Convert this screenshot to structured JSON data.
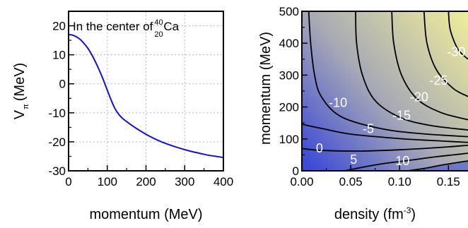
{
  "chart_data": [
    {
      "type": "line",
      "xlabel": "momentum (MeV)",
      "ylabel": {
        "main": "V",
        "sub": "π",
        "unit": "(MeV)"
      },
      "xlim": [
        0,
        400
      ],
      "ylim": [
        -30,
        25
      ],
      "xticks": [
        "0",
        "100",
        "200",
        "300",
        "400"
      ],
      "yticks": [
        "20",
        "10",
        "0",
        "-10",
        "-20",
        "-30"
      ],
      "grid": true,
      "annotation": {
        "text": "In the center of ",
        "mass_number": "40",
        "atomic_number": "20",
        "element": "Ca"
      },
      "colors": {
        "line": "#1010dd",
        "grid": "#b8b8b8"
      },
      "series": [
        {
          "x": [
            0,
            10,
            20,
            30,
            40,
            50,
            60,
            70,
            80,
            90,
            100,
            110,
            120,
            130,
            140,
            160,
            180,
            200,
            220,
            240,
            260,
            280,
            300,
            320,
            340,
            360,
            380,
            400
          ],
          "y": [
            17,
            16.8,
            16.2,
            15.3,
            13.9,
            12.2,
            10.0,
            7.4,
            4.5,
            1.3,
            -2.2,
            -5.6,
            -8.6,
            -10.6,
            -12.0,
            -14.0,
            -15.8,
            -17.4,
            -18.8,
            -20.0,
            -21.0,
            -21.9,
            -22.7,
            -23.4,
            -24.0,
            -24.6,
            -25.0,
            -25.4
          ]
        }
      ]
    },
    {
      "type": "contour",
      "xlabel": {
        "main": "density (fm",
        "sup": "-3",
        "close": ")"
      },
      "ylabel": "momentum (MeV)",
      "xlim": [
        0,
        0.17
      ],
      "ylim": [
        0,
        500
      ],
      "xticks": [
        "0.00",
        "0.05",
        "0.10",
        "0.15"
      ],
      "yticks": [
        "500",
        "400",
        "300",
        "200",
        "100",
        "0"
      ],
      "colormap": {
        "low": "#3d4ad6",
        "mid": "#a7a9b5",
        "high": "#f0ee9a"
      },
      "contours": [
        {
          "level": "10",
          "label": "10",
          "points": [
            [
              0.11,
              1
            ],
            [
              0.126,
              8
            ],
            [
              0.145,
              19
            ],
            [
              0.17,
              31
            ]
          ]
        },
        {
          "level": "5",
          "label": "5",
          "points": [
            [
              0.045,
              1
            ],
            [
              0.06,
              10
            ],
            [
              0.08,
              21
            ],
            [
              0.11,
              33
            ],
            [
              0.14,
              45
            ],
            [
              0.17,
              55
            ]
          ]
        },
        {
          "level": "0",
          "label": "0",
          "points": [
            [
              0.0,
              70
            ],
            [
              0.02,
              64
            ],
            [
              0.06,
              62
            ],
            [
              0.1,
              66
            ],
            [
              0.14,
              73
            ],
            [
              0.17,
              80
            ]
          ]
        },
        {
          "level": "-5",
          "label": "-5",
          "points": [
            [
              0.0,
              146
            ],
            [
              0.02,
              133
            ],
            [
              0.05,
              115
            ],
            [
              0.1,
              101
            ],
            [
              0.14,
              94
            ],
            [
              0.17,
              89
            ]
          ]
        },
        {
          "level": "-10",
          "label": "-10",
          "points": [
            [
              0.007,
              500
            ],
            [
              0.009,
              400
            ],
            [
              0.013,
              300
            ],
            [
              0.02,
              232
            ],
            [
              0.04,
              170
            ],
            [
              0.08,
              133
            ],
            [
              0.12,
              117
            ],
            [
              0.17,
              107
            ]
          ]
        },
        {
          "level": "-15",
          "label": "-15",
          "points": [
            [
              0.055,
              500
            ],
            [
              0.056,
              400
            ],
            [
              0.062,
              300
            ],
            [
              0.075,
              220
            ],
            [
              0.1,
              168
            ],
            [
              0.13,
              143
            ],
            [
              0.17,
              128
            ]
          ]
        },
        {
          "level": "-20",
          "label": "-20",
          "points": [
            [
              0.092,
              500
            ],
            [
              0.094,
              400
            ],
            [
              0.102,
              300
            ],
            [
              0.118,
              225
            ],
            [
              0.142,
              183
            ],
            [
              0.17,
              160
            ]
          ]
        },
        {
          "level": "-25",
          "label": "-25",
          "points": [
            [
              0.125,
              500
            ],
            [
              0.128,
              400
            ],
            [
              0.138,
              315
            ],
            [
              0.155,
              258
            ],
            [
              0.17,
              233
            ]
          ]
        },
        {
          "level": "-30",
          "label": "-30",
          "points": [
            [
              0.15,
              500
            ],
            [
              0.152,
              440
            ],
            [
              0.16,
              380
            ],
            [
              0.17,
              350
            ]
          ]
        }
      ]
    }
  ]
}
